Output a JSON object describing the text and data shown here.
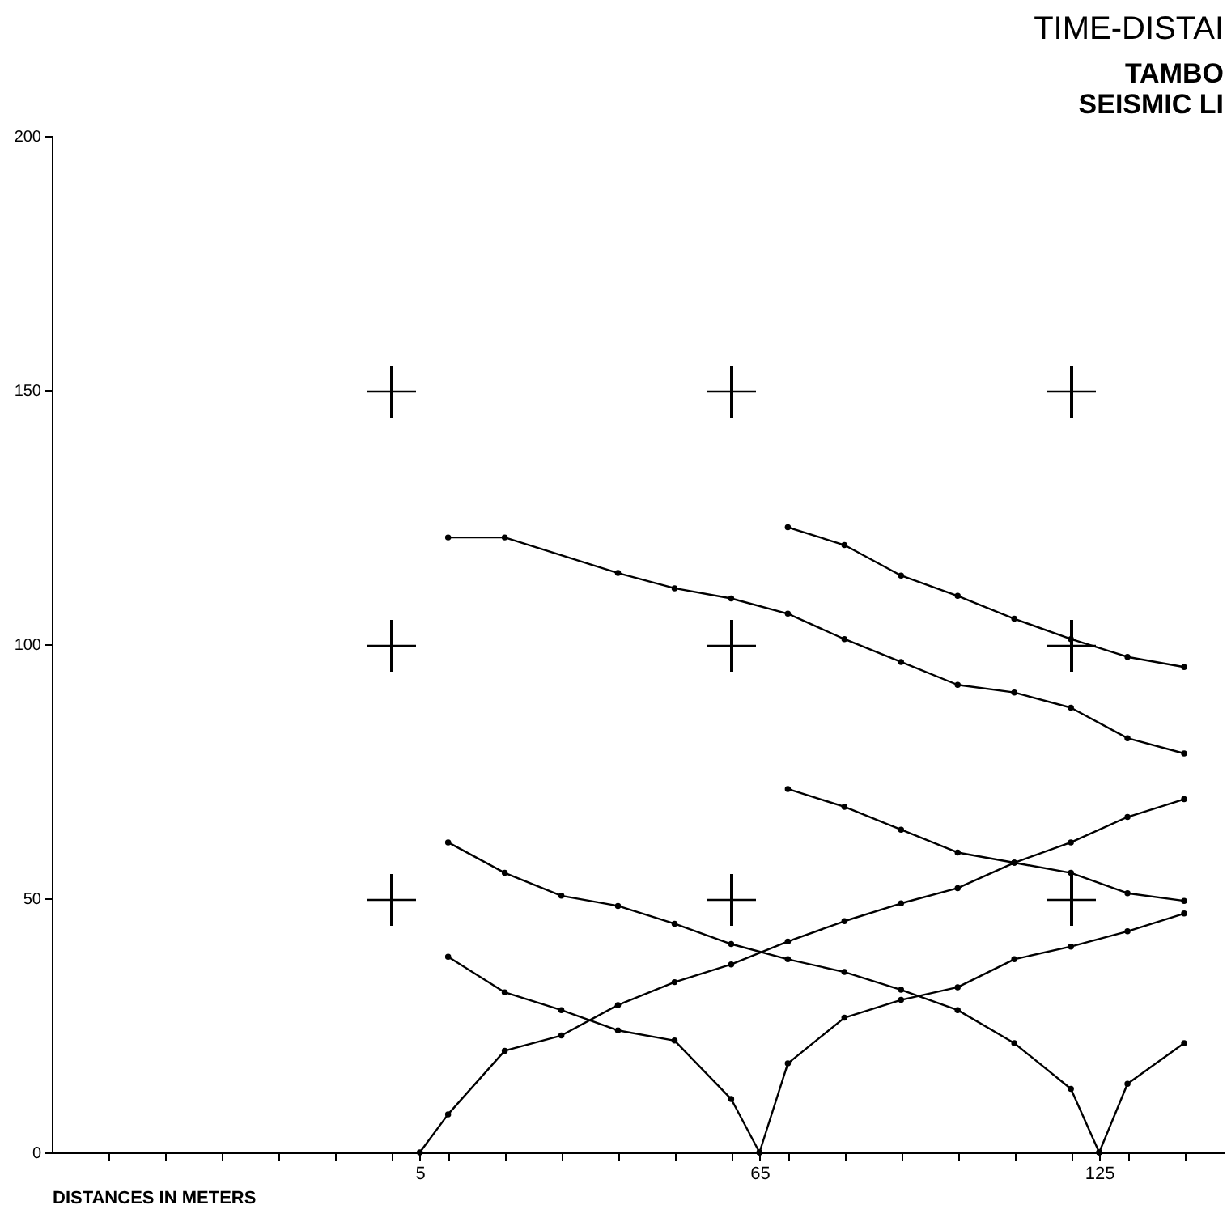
{
  "chart_data": {
    "type": "line",
    "title": "TIME-DISTAI",
    "subtitle": "TAMBO",
    "annotations": [
      "SEISMIC LI"
    ],
    "xlabel": "DISTANCES IN METERS",
    "marker": "circle",
    "line_style": "solid",
    "legend": false,
    "xlim": [
      -60,
      147
    ],
    "ylim": [
      0,
      200
    ],
    "yticks": [
      0,
      50,
      100,
      150,
      200
    ],
    "xticks": [
      {
        "value": -50,
        "label": null
      },
      {
        "value": -40,
        "label": null
      },
      {
        "value": -30,
        "label": null
      },
      {
        "value": -20,
        "label": null
      },
      {
        "value": -10,
        "label": null
      },
      {
        "value": 0,
        "label": null
      },
      5,
      {
        "value": 10,
        "label": null
      },
      {
        "value": 20,
        "label": null
      },
      {
        "value": 30,
        "label": null
      },
      {
        "value": 40,
        "label": null
      },
      {
        "value": 50,
        "label": null
      },
      {
        "value": 60,
        "label": null
      },
      65,
      {
        "value": 70,
        "label": null
      },
      {
        "value": 80,
        "label": null
      },
      {
        "value": 90,
        "label": null
      },
      {
        "value": 100,
        "label": null
      },
      {
        "value": 110,
        "label": null
      },
      {
        "value": 120,
        "label": null
      },
      125,
      {
        "value": 130,
        "label": null
      },
      {
        "value": 140,
        "label": null
      }
    ],
    "series": [
      {
        "color": "#000000",
        "x": [
          10,
          20,
          40,
          50,
          60,
          70,
          80,
          90,
          100,
          110,
          120,
          130,
          140
        ],
        "values": [
          121,
          121,
          114,
          111,
          109,
          106,
          101,
          96.5,
          92,
          90.5,
          87.5,
          81.5,
          78.5
        ]
      },
      {
        "color": "#000000",
        "x": [
          70,
          80,
          90,
          100,
          110,
          120,
          130,
          140
        ],
        "values": [
          123,
          119.5,
          113.5,
          109.5,
          105,
          101,
          97.5,
          95.5
        ]
      },
      {
        "color": "#000000",
        "x": [
          10,
          20,
          30,
          40,
          50,
          60,
          70,
          80,
          90,
          100,
          110,
          120,
          125
        ],
        "values": [
          61,
          55,
          50.5,
          48.5,
          45,
          41,
          38,
          35.5,
          32,
          28,
          21.5,
          12.5,
          0
        ]
      },
      {
        "color": "#000000",
        "x": [
          10,
          20,
          30,
          40,
          50,
          60,
          65
        ],
        "values": [
          38.5,
          31.5,
          28,
          24,
          22,
          10.5,
          0
        ]
      },
      {
        "color": "#000000",
        "x": [
          5,
          10,
          20,
          30,
          40,
          50,
          60,
          70,
          80,
          90,
          100,
          110,
          120,
          130,
          140
        ],
        "values": [
          0,
          7.5,
          20,
          23,
          29,
          33.5,
          37,
          41.5,
          45.5,
          49,
          52,
          57,
          61,
          66,
          69.5
        ]
      },
      {
        "color": "#000000",
        "x": [
          70,
          80,
          90,
          100,
          110,
          120,
          130,
          140
        ],
        "values": [
          71.5,
          68,
          63.5,
          59,
          57,
          55,
          51,
          49.5
        ]
      },
      {
        "color": "#000000",
        "x": [
          65,
          70,
          80,
          90,
          100,
          110,
          120,
          130,
          140
        ],
        "values": [
          0,
          17.5,
          26.5,
          30,
          32.5,
          38,
          40.5,
          43.5,
          47
        ]
      },
      {
        "color": "#000000",
        "x": [
          125,
          130,
          140
        ],
        "values": [
          0,
          13.5,
          21.5
        ]
      }
    ]
  }
}
